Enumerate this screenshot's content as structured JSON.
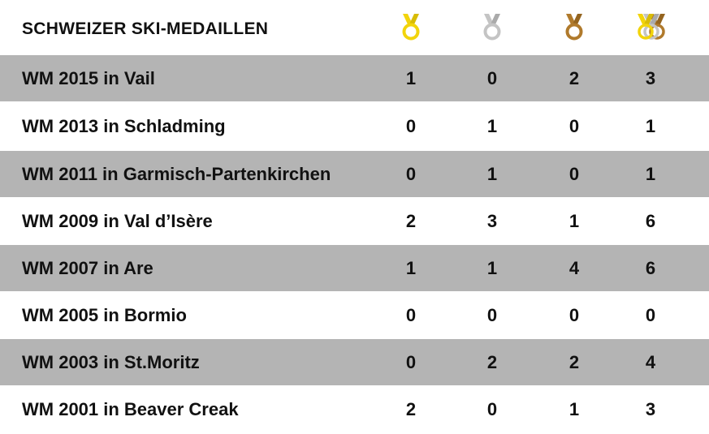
{
  "table": {
    "title": "SCHWEIZER SKI-MEDAILLEN",
    "medal_icons": [
      "gold-medal-icon",
      "silver-medal-icon",
      "bronze-medal-icon",
      "all-medals-icon"
    ],
    "colors": {
      "gold": "#f2d40b",
      "silver": "#c4c4c4",
      "bronze": "#b07a2c",
      "shaded_row": "#b4b4b4",
      "text": "#111111"
    },
    "rows": [
      {
        "event": "WM 2015 in Vail",
        "gold": "1",
        "silver": "0",
        "bronze": "2",
        "total": "3"
      },
      {
        "event": "WM 2013 in Schladming",
        "gold": "0",
        "silver": "1",
        "bronze": "0",
        "total": "1"
      },
      {
        "event": "WM 2011 in Garmisch-Partenkirchen",
        "gold": "0",
        "silver": "1",
        "bronze": "0",
        "total": "1"
      },
      {
        "event": "WM 2009 in Val d’Isère",
        "gold": "2",
        "silver": "3",
        "bronze": "1",
        "total": "6"
      },
      {
        "event": "WM 2007 in Are",
        "gold": "1",
        "silver": "1",
        "bronze": "4",
        "total": "6"
      },
      {
        "event": "WM 2005 in Bormio",
        "gold": "0",
        "silver": "0",
        "bronze": "0",
        "total": "0"
      },
      {
        "event": "WM 2003 in St.Moritz",
        "gold": "0",
        "silver": "2",
        "bronze": "2",
        "total": "4"
      },
      {
        "event": "WM 2001 in Beaver Creak",
        "gold": "2",
        "silver": "0",
        "bronze": "1",
        "total": "3"
      }
    ]
  }
}
